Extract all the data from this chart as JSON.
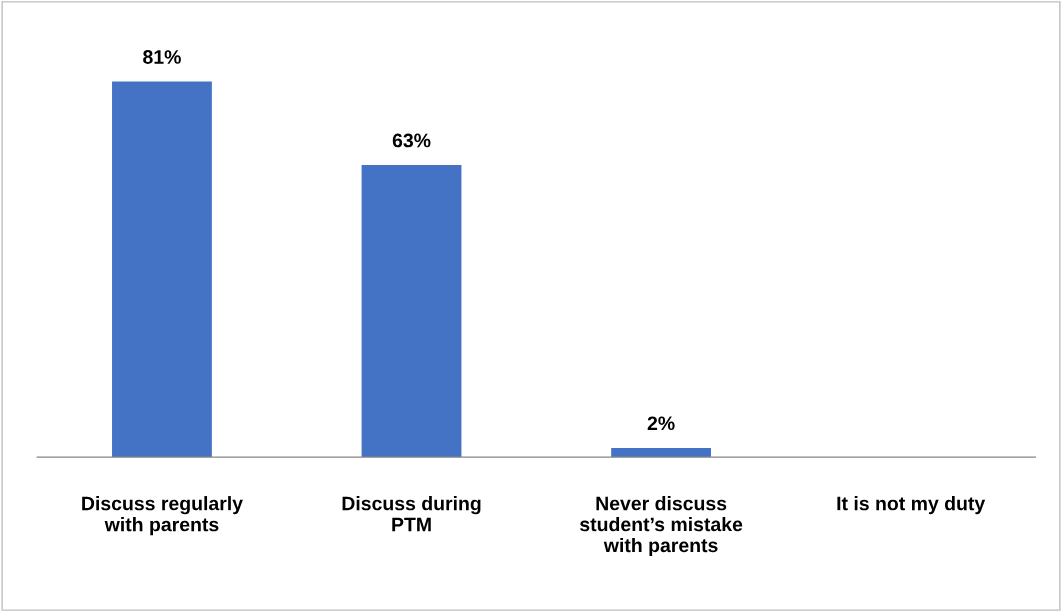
{
  "chart_data": {
    "type": "bar",
    "categories": [
      "Discuss regularly\nwith parents",
      "Discuss during\nPTM",
      "Never discuss\nstudent’s mistake\nwith parents",
      "It is not my duty"
    ],
    "values": [
      81,
      63,
      2,
      0
    ],
    "value_labels": [
      "81%",
      "63%",
      "2%",
      null
    ],
    "color": "#4472c4",
    "grid": false,
    "legend": false
  }
}
